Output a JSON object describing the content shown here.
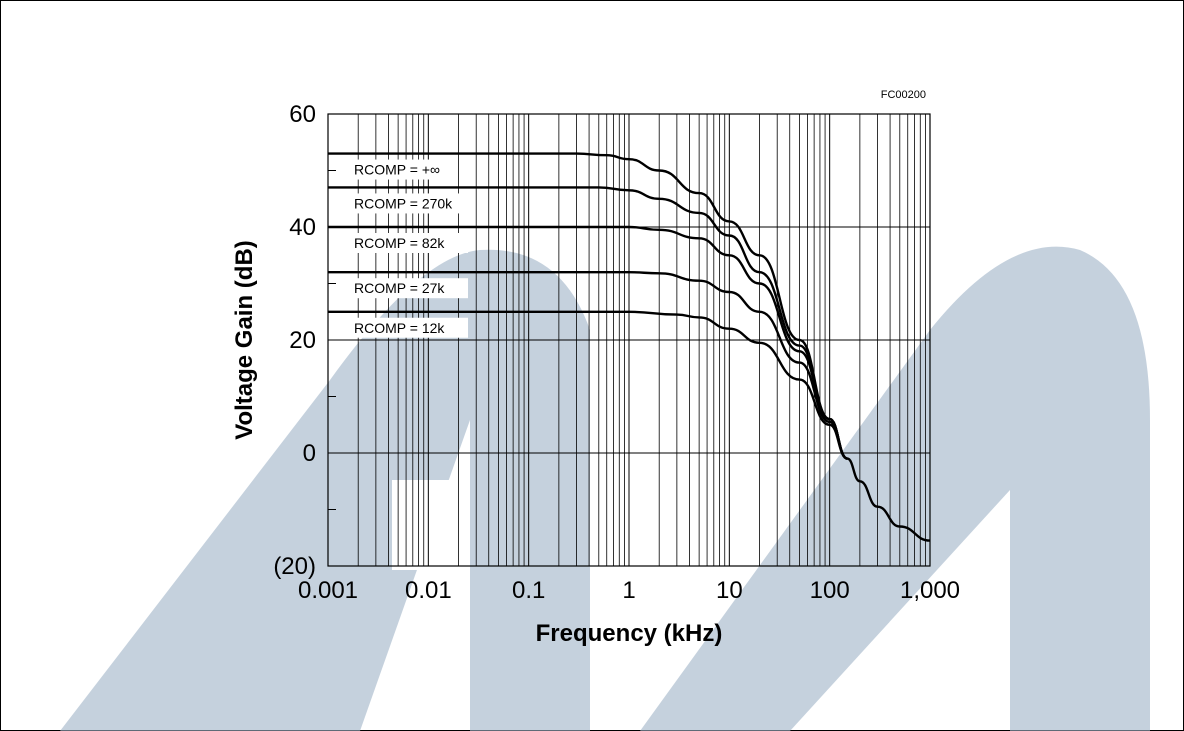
{
  "figure_code": "FC00200",
  "watermark_color": "#9fb3c8",
  "chart_data": {
    "type": "line",
    "xlabel": "Frequency (kHz)",
    "ylabel": "Voltage Gain (dB)",
    "x_scale": "log",
    "xlim": [
      0.001,
      1000
    ],
    "ylim": [
      -20,
      60
    ],
    "x_ticks": [
      0.001,
      0.01,
      0.1,
      1,
      10,
      100,
      1000
    ],
    "x_tick_labels": [
      "0.001",
      "0.01",
      "0.1",
      "1",
      "10",
      "100",
      "1,000"
    ],
    "y_ticks": [
      -20,
      0,
      20,
      40,
      60
    ],
    "y_tick_labels": [
      "(20)",
      "0",
      "20",
      "40",
      "60"
    ],
    "grid": true,
    "series": [
      {
        "name": "RCOMP = +∞",
        "x": [
          0.001,
          0.1,
          0.3,
          0.6,
          1,
          2,
          5,
          10,
          20,
          50,
          100,
          150,
          200,
          300,
          500,
          1000
        ],
        "y": [
          53,
          53,
          53,
          52.7,
          52,
          50,
          46,
          41,
          35,
          20,
          6,
          -1,
          -5,
          -9.5,
          -13,
          -15.5
        ]
      },
      {
        "name": "RCOMP = 270k",
        "x": [
          0.001,
          0.1,
          0.5,
          1,
          2,
          5,
          10,
          20,
          50,
          100,
          150
        ],
        "y": [
          47,
          47,
          47,
          46.5,
          45,
          42.5,
          38.5,
          32,
          19,
          6,
          -1
        ]
      },
      {
        "name": "RCOMP = 82k",
        "x": [
          0.001,
          0.3,
          1,
          2,
          5,
          10,
          20,
          50,
          100,
          150
        ],
        "y": [
          40,
          40,
          40,
          39.5,
          38,
          35,
          30,
          18,
          6,
          -1
        ]
      },
      {
        "name": "RCOMP = 27k",
        "x": [
          0.001,
          1,
          2,
          5,
          10,
          20,
          50,
          100,
          150
        ],
        "y": [
          32,
          32,
          31.8,
          30.5,
          28.5,
          25,
          16,
          5.5,
          -1
        ]
      },
      {
        "name": "RCOMP = 12k",
        "x": [
          0.001,
          1,
          3,
          5,
          10,
          20,
          50,
          100,
          150
        ],
        "y": [
          25,
          25,
          24.5,
          24,
          22,
          19.5,
          13,
          5,
          -1
        ]
      }
    ]
  }
}
